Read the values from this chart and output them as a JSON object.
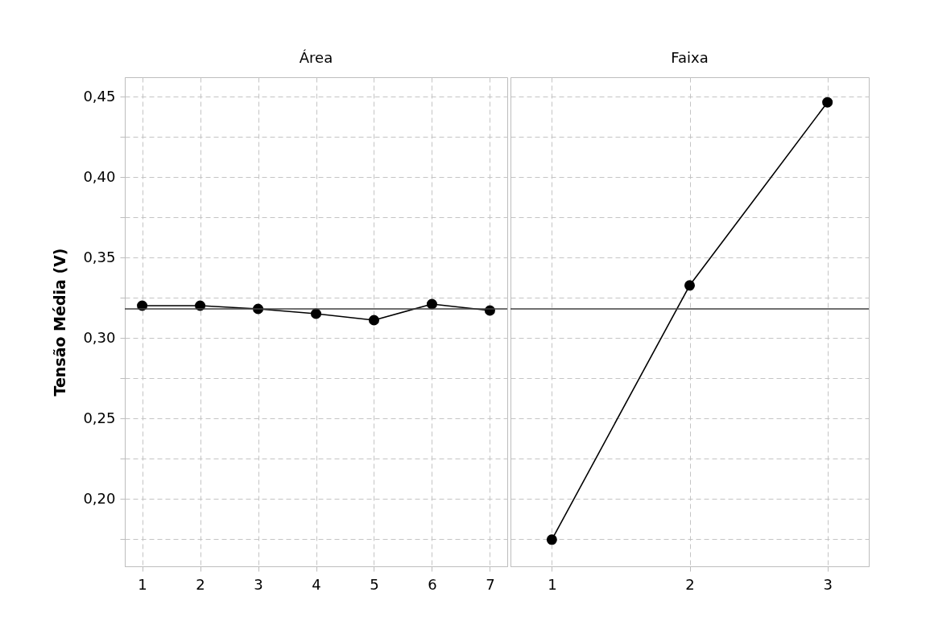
{
  "chart_data": [
    {
      "type": "line",
      "title": "Área",
      "ylabel": "Tensão Média (V)",
      "categories": [
        "1",
        "2",
        "3",
        "4",
        "5",
        "6",
        "7"
      ],
      "series": [
        {
          "color": "#000000",
          "values": [
            0.32,
            0.32,
            0.318,
            0.315,
            0.311,
            0.321,
            0.317
          ]
        }
      ],
      "ylim": [
        0.158,
        0.462
      ],
      "yticks": [
        {
          "value": 0.175,
          "label": null
        },
        {
          "value": 0.2,
          "label": "0,20"
        },
        {
          "value": 0.225,
          "label": null
        },
        {
          "value": 0.25,
          "label": "0,25"
        },
        {
          "value": 0.275,
          "label": null
        },
        {
          "value": 0.3,
          "label": "0,30"
        },
        {
          "value": 0.325,
          "label": null
        },
        {
          "value": 0.35,
          "label": "0,35"
        },
        {
          "value": 0.375,
          "label": null
        },
        {
          "value": 0.4,
          "label": "0,40"
        },
        {
          "value": 0.425,
          "label": null
        },
        {
          "value": 0.45,
          "label": "0,45"
        }
      ],
      "ref_lines": [
        {
          "axis": "y",
          "value": 0.318,
          "color": "#404040"
        }
      ],
      "grid": true,
      "marker": "circle",
      "line_style": "solid"
    },
    {
      "type": "line",
      "title": "Faixa",
      "categories": [
        "1",
        "2",
        "3"
      ],
      "series": [
        {
          "color": "#000000",
          "values": [
            0.1746,
            0.3326,
            0.4464
          ]
        }
      ],
      "ylim": [
        0.158,
        0.462
      ],
      "yticks": [
        {
          "value": 0.175,
          "label": null
        },
        {
          "value": 0.2,
          "label": null
        },
        {
          "value": 0.225,
          "label": null
        },
        {
          "value": 0.25,
          "label": null
        },
        {
          "value": 0.275,
          "label": null
        },
        {
          "value": 0.3,
          "label": null
        },
        {
          "value": 0.325,
          "label": null
        },
        {
          "value": 0.35,
          "label": null
        },
        {
          "value": 0.375,
          "label": null
        },
        {
          "value": 0.4,
          "label": null
        },
        {
          "value": 0.425,
          "label": null
        },
        {
          "value": 0.45,
          "label": null
        }
      ],
      "ref_lines": [
        {
          "axis": "y",
          "value": 0.318,
          "color": "#404040"
        }
      ],
      "grid": true,
      "marker": "circle",
      "line_style": "solid",
      "tick_labels": "x"
    }
  ]
}
